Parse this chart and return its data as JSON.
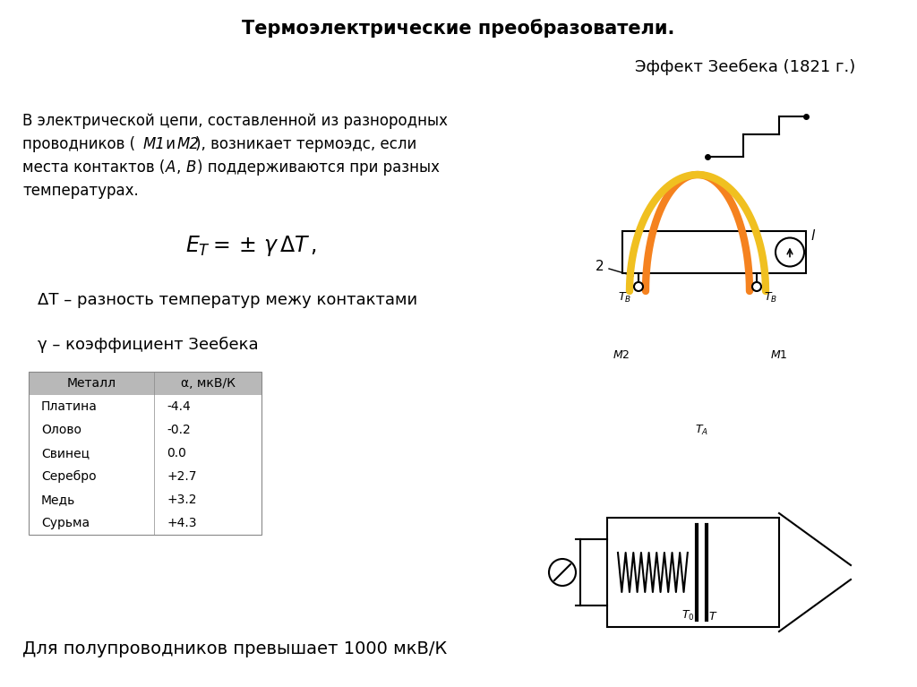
{
  "title": "Термоэлектрические преобразователи.",
  "subtitle": "Эффект Зеебека (1821 г.)",
  "body_line1": "В электрической цепи, составленной из разнородных",
  "body_line2": "проводников (",
  "body_line2_it1": "М1",
  "body_line2_mid": " и ",
  "body_line2_it2": "М2",
  "body_line2_end": "), возникает термоэдс, если",
  "body_line3": "места контактов (",
  "body_line3_it1": "А",
  "body_line3_mid": ", ",
  "body_line3_it2": "В",
  "body_line3_end": ") поддерживаются при разных",
  "body_line4": "температурах.",
  "delta_t_text": "ΔT – разность температур межу контактами",
  "gamma_text": "γ – коэффициент Зеебека",
  "bottom_text": "Для полупроводников превышает 1000 мкВ/К",
  "table_header": [
    "Металл",
    "α, мкВ/К"
  ],
  "table_data": [
    [
      "Платина",
      "-4.4"
    ],
    [
      "Олово",
      "-0.2"
    ],
    [
      "Свинец",
      "0.0"
    ],
    [
      "Серебро",
      "+2.7"
    ],
    [
      "Медь",
      "+3.2"
    ],
    [
      "Сурьма",
      "+4.3"
    ]
  ],
  "bg_color": "#ffffff",
  "text_color": "#000000",
  "table_header_bg": "#b8b8b8",
  "orange_color": "#f5821f",
  "yellow_color": "#f0c020"
}
